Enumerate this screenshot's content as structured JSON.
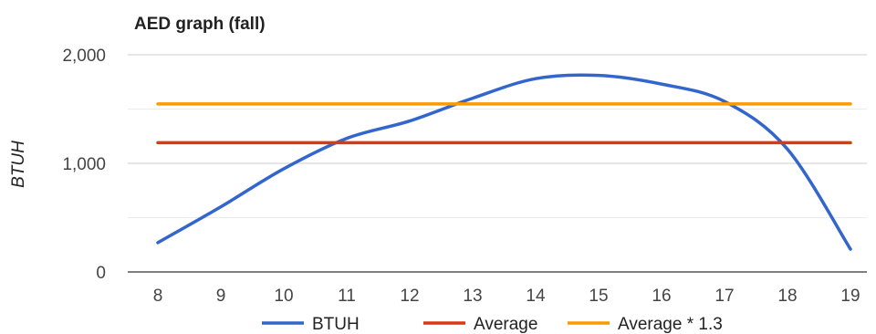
{
  "chart_data": {
    "type": "line",
    "title": "AED graph (fall)",
    "xlabel": "",
    "ylabel": "BTUH",
    "x": [
      8,
      9,
      10,
      11,
      12,
      13,
      14,
      15,
      16,
      17,
      18,
      19
    ],
    "x_tick_labels": [
      "8",
      "9",
      "10",
      "11",
      "12",
      "13",
      "14",
      "15",
      "16",
      "17",
      "18",
      "19"
    ],
    "ylim": [
      0,
      2000
    ],
    "y_ticks": [
      0,
      1000,
      2000
    ],
    "y_tick_labels": [
      "0",
      "1,000",
      "2,000"
    ],
    "grid": true,
    "legend_position": "bottom",
    "series": [
      {
        "name": "BTUH",
        "color": "#3366cc",
        "smooth": true,
        "values": [
          270,
          600,
          950,
          1230,
          1390,
          1600,
          1780,
          1810,
          1730,
          1570,
          1130,
          210
        ]
      },
      {
        "name": "Average",
        "color": "#dc3912",
        "smooth": false,
        "values": [
          1190,
          1190,
          1190,
          1190,
          1190,
          1190,
          1190,
          1190,
          1190,
          1190,
          1190,
          1190
        ]
      },
      {
        "name": "Average * 1.3",
        "color": "#ff9900",
        "smooth": false,
        "values": [
          1547,
          1547,
          1547,
          1547,
          1547,
          1547,
          1547,
          1547,
          1547,
          1547,
          1547,
          1547
        ]
      }
    ]
  }
}
